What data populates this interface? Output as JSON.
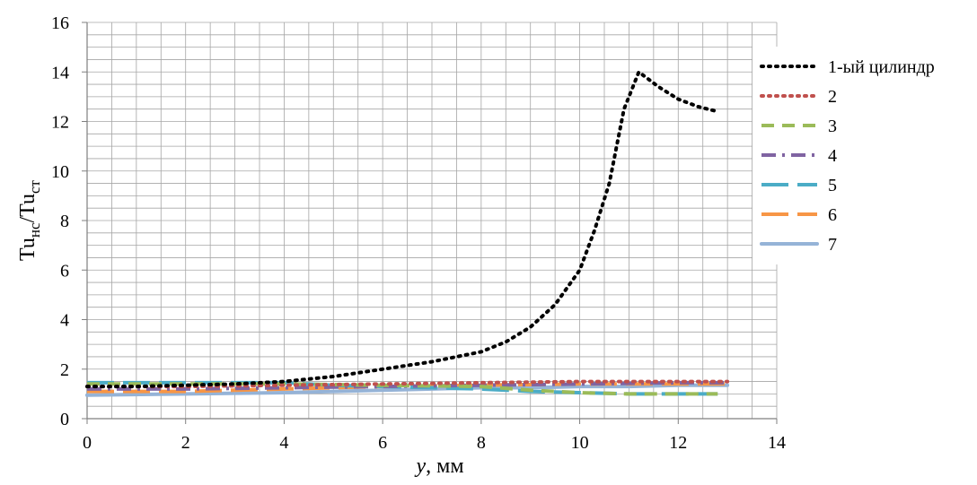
{
  "chart_data": {
    "type": "line",
    "xlabel_italic": "y",
    "xlabel_rest": ", мм",
    "ylabel_base1": "Tu",
    "ylabel_sub1": "нс",
    "ylabel_slash": "/",
    "ylabel_base2": "Tu",
    "ylabel_sub2": "ст",
    "xlim": [
      0,
      14
    ],
    "ylim": [
      0,
      16
    ],
    "xticks": [
      0,
      2,
      4,
      6,
      8,
      10,
      12,
      14
    ],
    "yticks": [
      0,
      2,
      4,
      6,
      8,
      10,
      12,
      14,
      16
    ],
    "grid": true,
    "legend_position": "right",
    "series": [
      {
        "name": "1-ый цилиндр",
        "color": "#000000",
        "style": "dotted",
        "x": [
          0,
          1,
          2,
          3,
          4,
          5,
          6,
          7,
          8,
          8.5,
          9,
          9.5,
          10,
          10.3,
          10.6,
          10.9,
          11.2,
          11.6,
          12,
          12.4,
          12.8
        ],
        "y": [
          1.3,
          1.3,
          1.35,
          1.4,
          1.5,
          1.7,
          2.0,
          2.3,
          2.7,
          3.1,
          3.7,
          4.6,
          6.0,
          7.6,
          9.5,
          12.5,
          14.0,
          13.4,
          12.9,
          12.6,
          12.4
        ]
      },
      {
        "name": "2",
        "color": "#c0504d",
        "style": "dotted",
        "x": [
          0,
          2,
          4,
          6,
          8,
          10,
          12,
          13
        ],
        "y": [
          1.3,
          1.3,
          1.35,
          1.4,
          1.45,
          1.5,
          1.5,
          1.5
        ]
      },
      {
        "name": "3",
        "color": "#9bbb59",
        "style": "dashed",
        "x": [
          0,
          2,
          4,
          6,
          8,
          9,
          10,
          11,
          12,
          12.8
        ],
        "y": [
          1.4,
          1.4,
          1.4,
          1.35,
          1.3,
          1.15,
          1.05,
          1.0,
          1.0,
          1.0
        ]
      },
      {
        "name": "4",
        "color": "#8064a2",
        "style": "dashdot",
        "x": [
          0,
          2,
          4,
          6,
          8,
          10,
          12,
          13
        ],
        "y": [
          1.2,
          1.2,
          1.25,
          1.3,
          1.35,
          1.4,
          1.45,
          1.45
        ]
      },
      {
        "name": "5",
        "color": "#4bacc6",
        "style": "longdash",
        "x": [
          0,
          2,
          4,
          5,
          6,
          7,
          8,
          9,
          10,
          11,
          12,
          12.8
        ],
        "y": [
          1.45,
          1.45,
          1.45,
          1.35,
          1.3,
          1.25,
          1.2,
          1.1,
          1.05,
          1.0,
          1.0,
          1.0
        ]
      },
      {
        "name": "6",
        "color": "#f79646",
        "style": "longdash",
        "x": [
          0,
          2,
          4,
          6,
          8,
          10,
          12,
          13
        ],
        "y": [
          1.1,
          1.1,
          1.2,
          1.3,
          1.35,
          1.4,
          1.4,
          1.4
        ]
      },
      {
        "name": "7",
        "color": "#95b3d7",
        "style": "solid",
        "x": [
          0,
          2,
          4,
          6,
          7,
          8,
          9,
          10,
          11,
          12,
          13
        ],
        "y": [
          0.95,
          1.0,
          1.05,
          1.15,
          1.2,
          1.25,
          1.25,
          1.3,
          1.3,
          1.35,
          1.35
        ]
      }
    ]
  }
}
